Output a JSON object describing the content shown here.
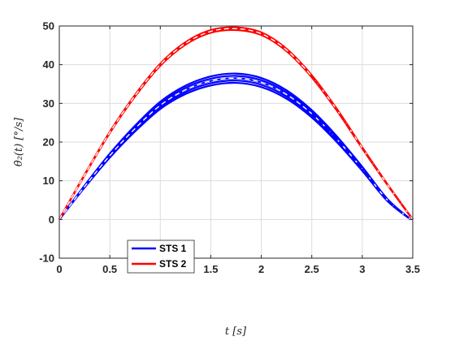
{
  "chart_data": {
    "type": "line",
    "xlabel": "t [s]",
    "ylabel": "θ̇₂(t) [°/s]",
    "xlim": [
      0,
      3.5
    ],
    "ylim": [
      -10,
      50
    ],
    "x_ticks": [
      "0",
      "0.5",
      "1",
      "1.5",
      "2",
      "2.5",
      "3",
      "3.5"
    ],
    "y_ticks": [
      "-10",
      "0",
      "10",
      "20",
      "30",
      "40",
      "50"
    ],
    "grid": true,
    "legend_position": "bottom-left",
    "series": [
      {
        "name": "STS 1",
        "color": "#0000ff",
        "x": [
          0,
          0.25,
          0.5,
          0.75,
          1.0,
          1.25,
          1.5,
          1.75,
          2.0,
          2.25,
          2.5,
          2.75,
          3.0,
          3.25,
          3.48
        ],
        "y": [
          0,
          8.5,
          16.5,
          23.5,
          29.5,
          33.5,
          35.8,
          36.5,
          35.4,
          32.3,
          27.3,
          20.7,
          13.1,
          5.0,
          0
        ],
        "band_width": 1.2
      },
      {
        "name": "STS 2",
        "color": "#ff0000",
        "x": [
          0,
          0.25,
          0.5,
          0.75,
          1.0,
          1.25,
          1.5,
          1.75,
          2.0,
          2.25,
          2.5,
          2.75,
          3.0,
          3.25,
          3.5
        ],
        "y": [
          0,
          11.5,
          22.5,
          32.0,
          40.0,
          45.5,
          48.6,
          49.3,
          48.0,
          43.8,
          37.0,
          28.3,
          18.5,
          9.0,
          0
        ],
        "band_width": 0.35
      }
    ]
  }
}
